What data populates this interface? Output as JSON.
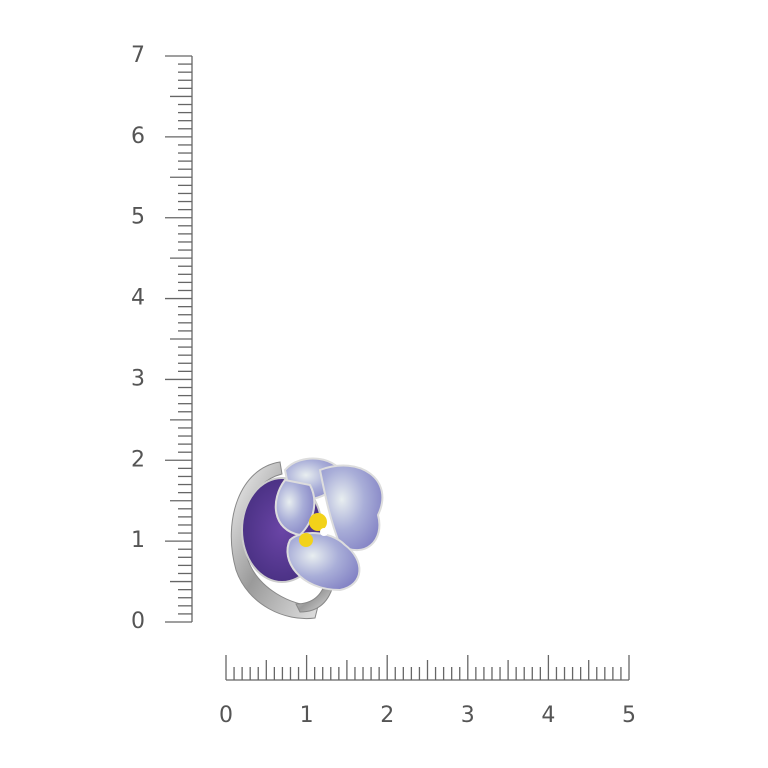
{
  "vertical_ruler": {
    "labels": [
      0,
      1,
      2,
      3,
      4,
      5,
      6,
      7
    ]
  },
  "horizontal_ruler": {
    "labels": [
      0,
      1,
      2,
      3,
      4,
      5
    ]
  }
}
